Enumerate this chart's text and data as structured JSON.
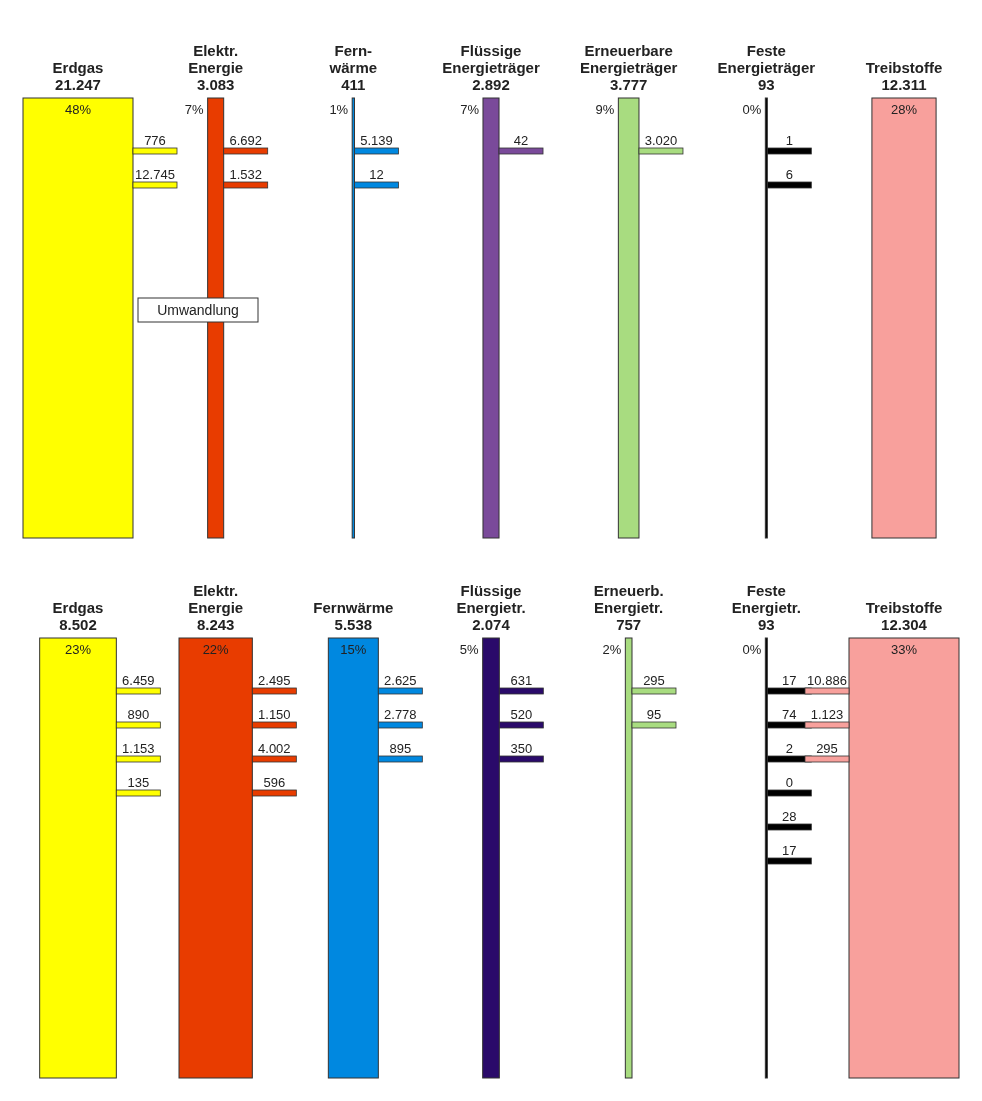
{
  "chart_data": [
    {
      "type": "other",
      "categories": [
        "Erdgas\n21.247",
        "Elektr.\nEnergie\n3.083",
        "Fern-\nwärme\n411",
        "Flüssige\nEnergieträger\n2.892",
        "Erneuerbare\nEnergieträger\n3.777",
        "Feste\nEnergieträger\n93",
        "Treibstoffe\n12.311"
      ],
      "values": [
        48,
        7,
        1,
        7,
        9,
        0,
        28
      ],
      "value_labels": [
        "48%",
        "7%",
        "1%",
        "7%",
        "9%",
        "0%",
        "28%"
      ],
      "colors": [
        "#ffff00",
        "#e83c00",
        "#0088e0",
        "#7a4a9a",
        "#a8dc80",
        "#000000",
        "#f8a09c"
      ],
      "annotations": [
        "Umwandlung",
        {
          "text": "776",
          "x": "Erdgas\n21.247"
        },
        {
          "text": "12.745",
          "x": "Erdgas\n21.247"
        },
        {
          "text": "6.692",
          "x": "Elektr.\nEnergie\n3.083"
        },
        {
          "text": "1.532",
          "x": "Elektr.\nEnergie\n3.083"
        },
        {
          "text": "5.139",
          "x": "Fern-\nwärme\n411"
        },
        {
          "text": "12",
          "x": "Fern-\nwärme\n411"
        },
        {
          "text": "42",
          "x": "Flüssige\nEnergieträger\n2.892"
        },
        {
          "text": "3.020",
          "x": "Erneuerbare\nEnergieträger\n3.777"
        },
        {
          "text": "1",
          "x": "Feste\nEnergieträger\n93"
        },
        {
          "text": "6",
          "x": "Feste\nEnergieträger\n93"
        }
      ]
    },
    {
      "type": "other",
      "categories": [
        "Erdgas\n8.502",
        "Elektr.\nEnergie\n8.243",
        "Fernwärme\n5.538",
        "Flüssige\nEnergietr.\n2.074",
        "Erneuerb.\nEnergietr.\n757",
        "Feste\nEnergietr.\n93",
        "Treibstoffe\n12.304"
      ],
      "values": [
        23,
        22,
        15,
        5,
        2,
        0,
        33
      ],
      "value_labels": [
        "23%",
        "22%",
        "15%",
        "5%",
        "2%",
        "0%",
        "33%"
      ],
      "colors": [
        "#ffff00",
        "#e83c00",
        "#0088e0",
        "#2a0a6a",
        "#a8dc80",
        "#000000",
        "#f8a09c"
      ],
      "annotations": [
        {
          "text": "6.459",
          "x": "Erdgas\n8.502"
        },
        {
          "text": "890",
          "x": "Erdgas\n8.502"
        },
        {
          "text": "1.153",
          "x": "Erdgas\n8.502"
        },
        {
          "text": "135",
          "x": "Erdgas\n8.502"
        },
        {
          "text": "2.495",
          "x": "Elektr.\nEnergie\n8.243"
        },
        {
          "text": "1.150",
          "x": "Elektr.\nEnergie\n8.243"
        },
        {
          "text": "4.002",
          "x": "Elektr.\nEnergie\n8.243"
        },
        {
          "text": "596",
          "x": "Elektr.\nEnergie\n8.243"
        },
        {
          "text": "2.625",
          "x": "Fernwärme\n5.538"
        },
        {
          "text": "2.778",
          "x": "Fernwärme\n5.538"
        },
        {
          "text": "895",
          "x": "Fernwärme\n5.538"
        },
        {
          "text": "631",
          "x": "Flüssige\nEnergietr.\n2.074"
        },
        {
          "text": "520",
          "x": "Flüssige\nEnergietr.\n2.074"
        },
        {
          "text": "350",
          "x": "Flüssige\nEnergietr.\n2.074"
        },
        {
          "text": "295",
          "x": "Erneuerb.\nEnergietr.\n757"
        },
        {
          "text": "95",
          "x": "Erneuerb.\nEnergietr.\n757"
        },
        {
          "text": "17",
          "x": "Feste\nEnergietr.\n93"
        },
        {
          "text": "74",
          "x": "Feste\nEnergietr.\n93"
        },
        {
          "text": "2",
          "x": "Feste\nEnergietr.\n93"
        },
        {
          "text": "0",
          "x": "Feste\nEnergietr.\n93"
        },
        {
          "text": "28",
          "x": "Feste\nEnergietr.\n93"
        },
        {
          "text": "17",
          "x": "Feste\nEnergietr.\n93"
        },
        {
          "text": "10.886",
          "x": "Treibstoffe\n12.304"
        },
        {
          "text": "1.123",
          "x": "Treibstoffe\n12.304"
        },
        {
          "text": "295",
          "x": "Treibstoffe\n12.304"
        }
      ]
    }
  ]
}
